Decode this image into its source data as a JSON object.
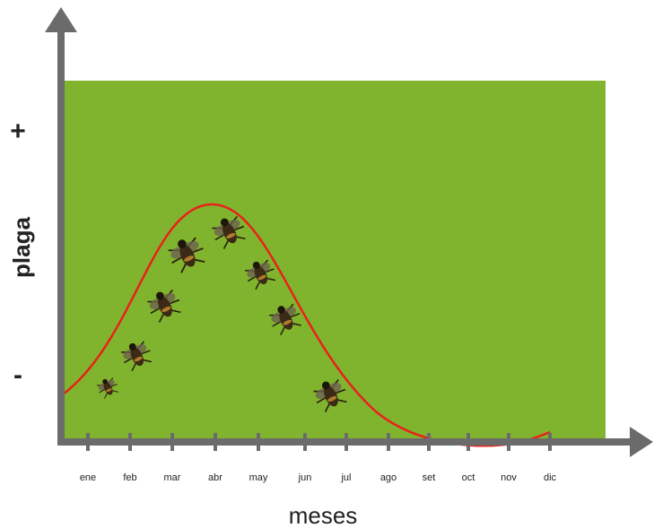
{
  "chart_data": {
    "type": "line",
    "categories": [
      "ene",
      "feb",
      "mar",
      "abr",
      "may",
      "jun",
      "jul",
      "ago",
      "set",
      "oct",
      "nov",
      "dic"
    ],
    "x_label": "meses",
    "y_label": "plaga",
    "y_high_label": "+",
    "y_low_label": "-",
    "background_color": "#80b42e",
    "line_color": "#e8211b"
  }
}
